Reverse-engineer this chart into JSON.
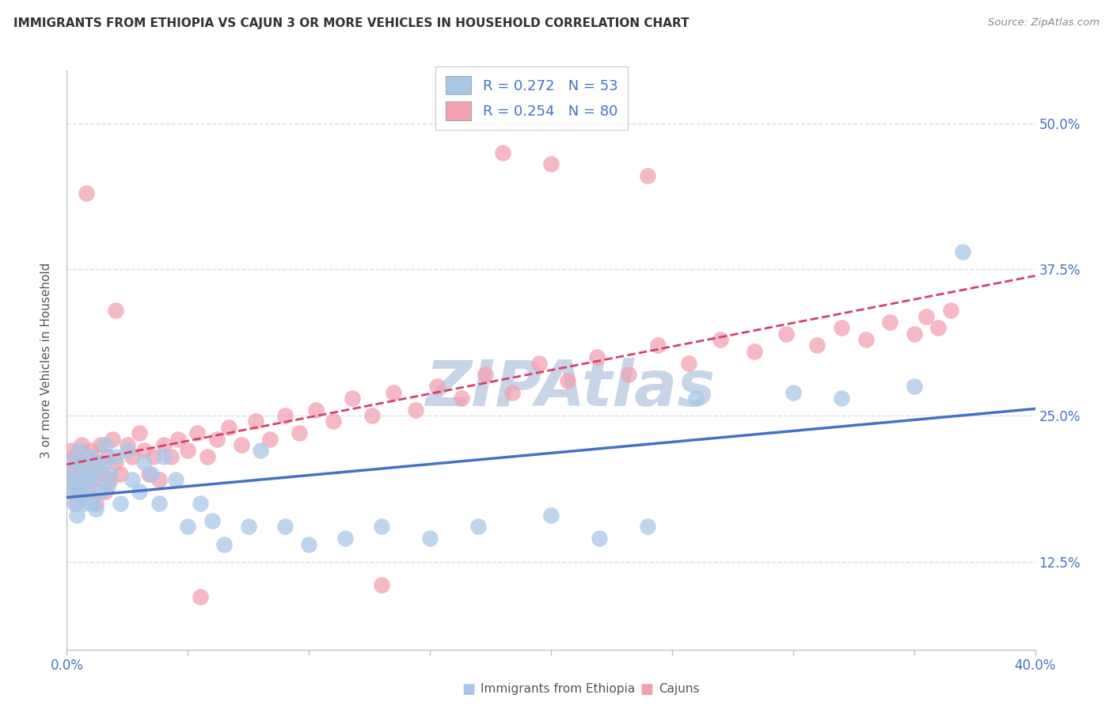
{
  "title": "IMMIGRANTS FROM ETHIOPIA VS CAJUN 3 OR MORE VEHICLES IN HOUSEHOLD CORRELATION CHART",
  "source": "Source: ZipAtlas.com",
  "ylabel": "3 or more Vehicles in Household",
  "yticks": [
    "12.5%",
    "25.0%",
    "37.5%",
    "50.0%"
  ],
  "ytick_vals": [
    0.125,
    0.25,
    0.375,
    0.5
  ],
  "xlim": [
    0.0,
    0.4
  ],
  "ylim": [
    0.05,
    0.545
  ],
  "legend_label1": "Immigrants from Ethiopia",
  "legend_label2": "Cajuns",
  "R1": "0.272",
  "N1": "53",
  "R2": "0.254",
  "N2": "80",
  "color1": "#a8c8e8",
  "color2": "#f4a0b0",
  "trendline1_color": "#4472c4",
  "trendline2_color": "#d44070",
  "watermark_color": "#c8d4e8",
  "grid_color": "#d8dce8",
  "spine_color": "#c0c4cc"
}
